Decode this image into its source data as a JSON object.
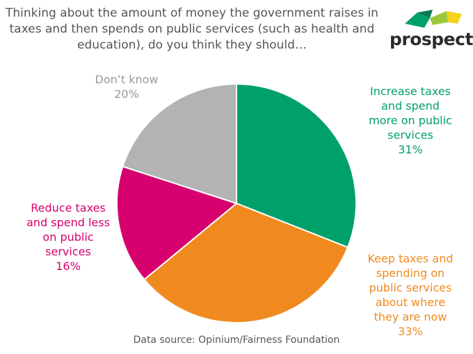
{
  "title": "Thinking about the amount of money the government raises in taxes and then spends on public services (such as health and education), do you think they should…",
  "logo": {
    "text": "prospect"
  },
  "source": "Data source: Opinium/Fairness Foundation",
  "chart_data": {
    "type": "pie",
    "title": "Thinking about the amount of money the government raises in taxes and then spends on public services (such as health and education), do you think they should…",
    "slices": [
      {
        "label": "Increase taxes and spend more on public services",
        "value": 31,
        "value_label": "31%",
        "color": "#00a06b"
      },
      {
        "label": "Keep taxes and spending on public services about where they are now",
        "value": 33,
        "value_label": "33%",
        "color": "#f08a1e"
      },
      {
        "label": "Reduce taxes and spend less on public services",
        "value": 16,
        "value_label": "16%",
        "color": "#d6006e"
      },
      {
        "label": "Don’t know",
        "value": 20,
        "value_label": "20%",
        "color": "#b3b3b3"
      }
    ],
    "start": "12 o'clock",
    "direction": "clockwise"
  }
}
